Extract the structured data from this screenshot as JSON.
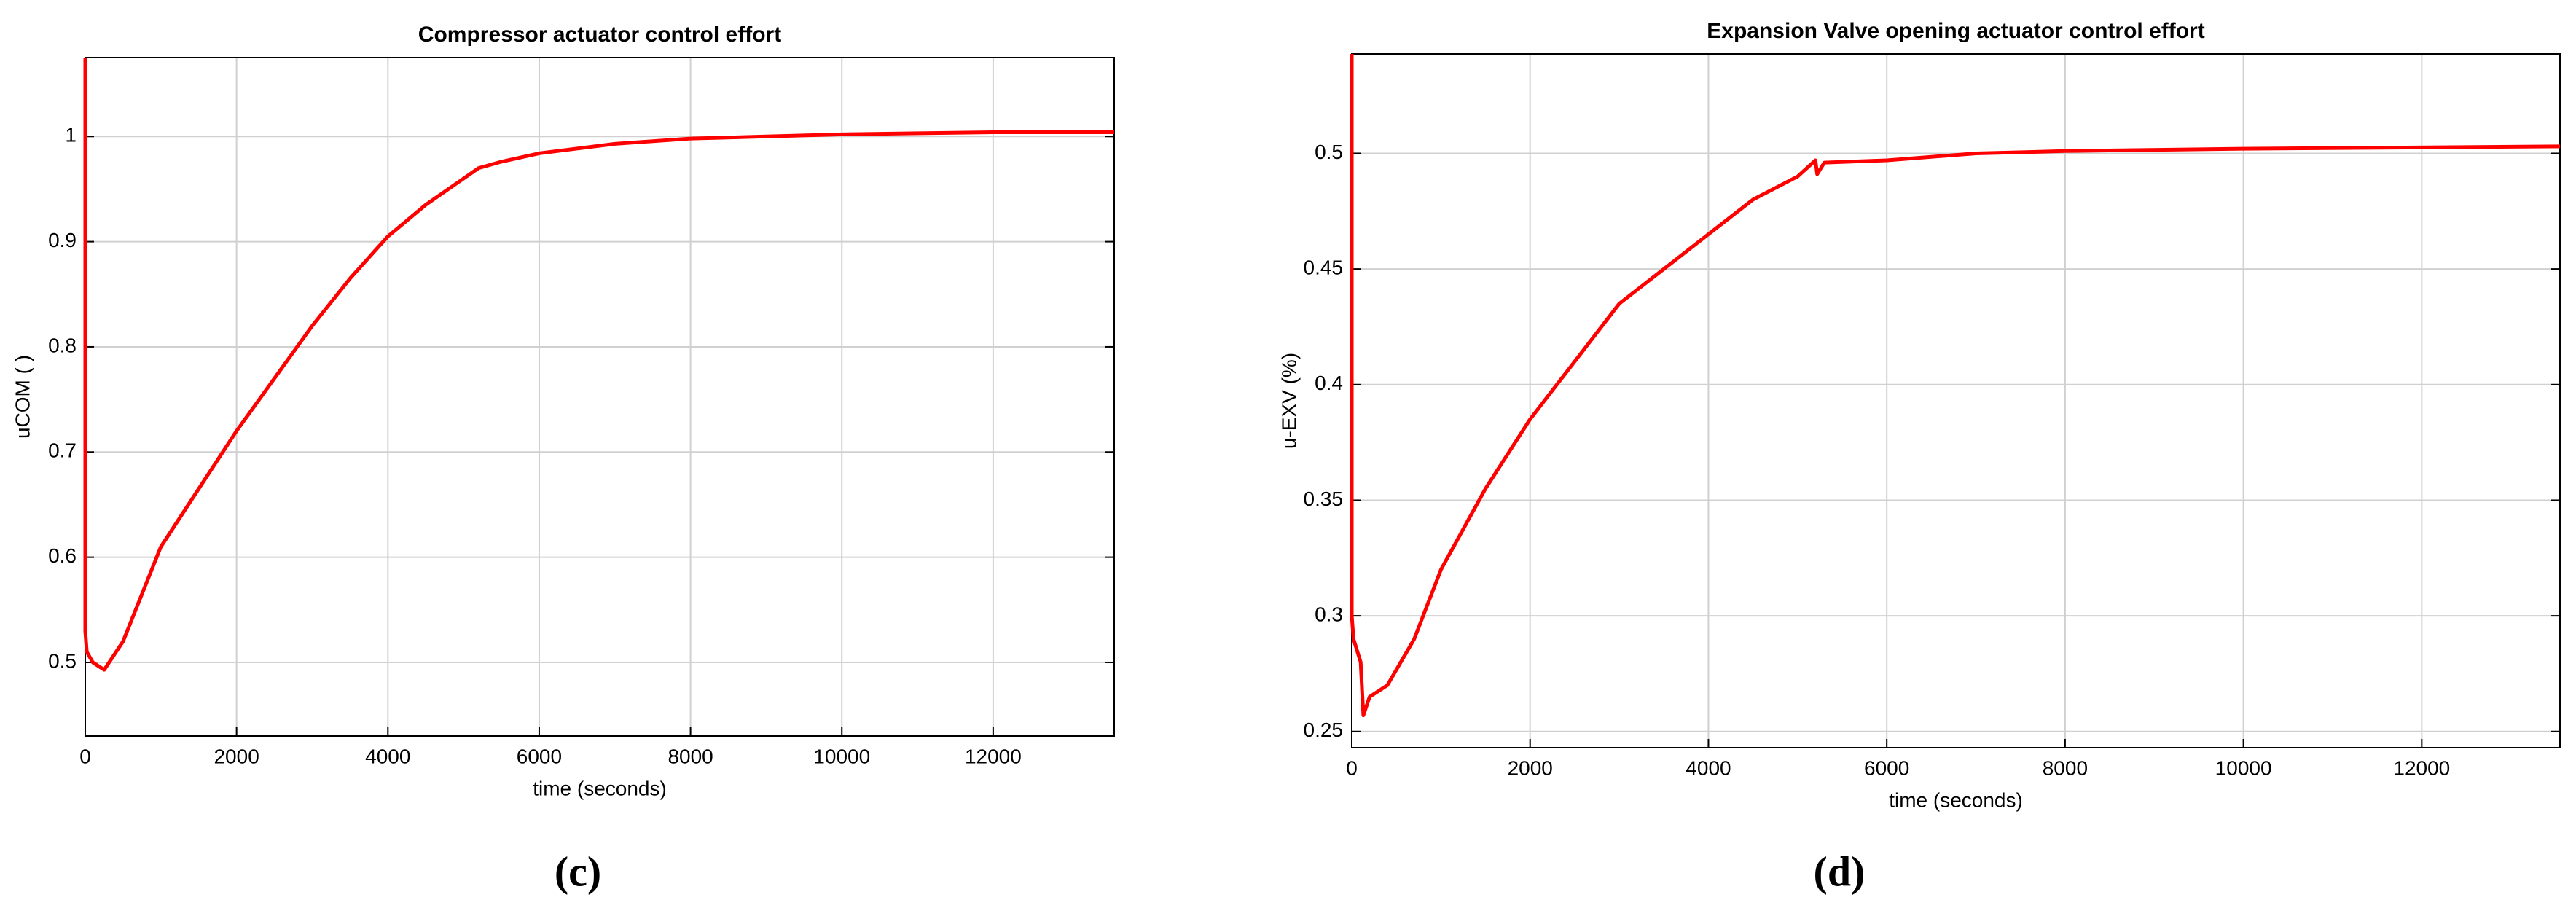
{
  "chart_data": [
    {
      "type": "line",
      "title": "Compressor actuator control effort",
      "xlabel": "time (seconds)",
      "ylabel": "uCOM ( )",
      "panel_label": "(c)",
      "color": "#ff0000",
      "grid": true,
      "x": [
        0,
        0,
        20,
        100,
        250,
        500,
        1000,
        1500,
        2000,
        2500,
        3000,
        3500,
        4000,
        4500,
        5000,
        5200,
        5500,
        6000,
        7000,
        8000,
        9000,
        10000,
        11000,
        12000,
        13600
      ],
      "values": [
        1.075,
        0.53,
        0.51,
        0.5,
        0.493,
        0.52,
        0.61,
        0.665,
        0.72,
        0.77,
        0.82,
        0.865,
        0.905,
        0.935,
        0.96,
        0.97,
        0.976,
        0.984,
        0.993,
        0.998,
        1.0,
        1.002,
        1.003,
        1.004,
        1.004
      ],
      "xlim": [
        0,
        13600
      ],
      "xticks": [
        0,
        2000,
        4000,
        6000,
        8000,
        10000,
        12000
      ],
      "ylim": [
        0.43,
        1.075
      ],
      "yticks": [
        0.5,
        0.6,
        0.7,
        0.8,
        0.9,
        1
      ]
    },
    {
      "type": "line",
      "title": "Expansion Valve opening actuator control effort",
      "xlabel": "time (seconds)",
      "ylabel": "u-EXV (%)",
      "panel_label": "(d)",
      "color": "#ff0000",
      "grid": true,
      "x": [
        0,
        0,
        20,
        100,
        130,
        200,
        400,
        700,
        1000,
        1500,
        2000,
        2500,
        3000,
        3500,
        4000,
        4500,
        5000,
        5200,
        5220,
        5300,
        6000,
        7000,
        8000,
        10000,
        13550
      ],
      "values": [
        0.543,
        0.3,
        0.29,
        0.28,
        0.257,
        0.265,
        0.27,
        0.29,
        0.32,
        0.355,
        0.385,
        0.41,
        0.435,
        0.45,
        0.465,
        0.48,
        0.49,
        0.497,
        0.491,
        0.496,
        0.497,
        0.5,
        0.501,
        0.502,
        0.503
      ],
      "xlim": [
        0,
        13550
      ],
      "xticks": [
        0,
        2000,
        4000,
        6000,
        8000,
        10000,
        12000
      ],
      "ylim": [
        0.243,
        0.543
      ],
      "yticks": [
        0.25,
        0.3,
        0.35,
        0.4,
        0.45,
        0.5
      ]
    }
  ]
}
